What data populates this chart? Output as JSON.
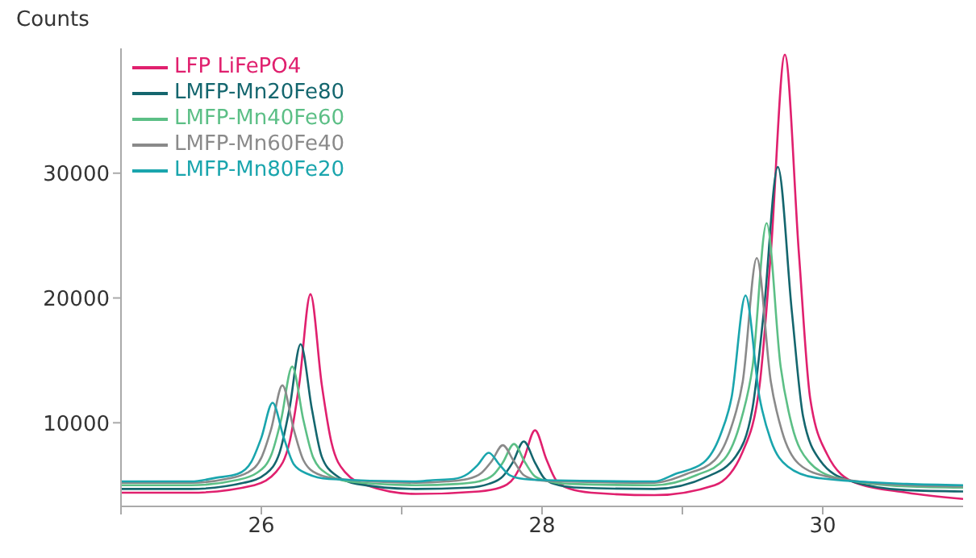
{
  "chart_data": {
    "type": "line",
    "ylabel": "Counts",
    "xlim": [
      25,
      31
    ],
    "ylim": [
      3300,
      40000
    ],
    "xticks": [
      {
        "value": 25,
        "label": null
      },
      26,
      {
        "value": 27,
        "label": null
      },
      28,
      {
        "value": 29,
        "label": null
      },
      30
    ],
    "yticks": [
      10000,
      20000,
      30000
    ],
    "grid": false,
    "legend": "top left",
    "marker": "none",
    "line_style": "solid",
    "series": [
      {
        "name": "LFP LiFePO4",
        "color": "#e0206e",
        "x": [
          25,
          25.5,
          25.95,
          26.1,
          26.2,
          26.27,
          26.35,
          26.43,
          26.5,
          26.6,
          26.75,
          27.1,
          27.55,
          27.7,
          27.8,
          27.87,
          27.95,
          28.03,
          28.1,
          28.2,
          28.35,
          28.8,
          29.23,
          29.43,
          29.55,
          29.63,
          29.73,
          29.83,
          29.91,
          30.03,
          30.23,
          30.6,
          31
        ],
        "values": [
          4400,
          4400,
          5000,
          6000,
          8400,
          13100,
          20300,
          13100,
          8400,
          6000,
          5000,
          4300,
          4500,
          4800,
          5600,
          7100,
          9400,
          7100,
          5400,
          4700,
          4400,
          4200,
          5000,
          7700,
          13000,
          23600,
          39500,
          23600,
          12000,
          7500,
          5200,
          4400,
          3900
        ]
      },
      {
        "name": "LMFP-Mn20Fe80",
        "color": "#14666e",
        "x": [
          25,
          25.5,
          25.88,
          26.03,
          26.13,
          26.2,
          26.28,
          26.36,
          26.43,
          26.53,
          26.68,
          27.1,
          27.47,
          27.62,
          27.72,
          27.79,
          27.87,
          27.95,
          28.02,
          28.12,
          28.27,
          28.8,
          29.18,
          29.38,
          29.5,
          29.58,
          29.68,
          29.78,
          29.86,
          29.98,
          30.18,
          30.6,
          31
        ],
        "values": [
          4700,
          4700,
          5200,
          5900,
          7600,
          11100,
          16300,
          11100,
          7300,
          5800,
          5100,
          4700,
          4800,
          5100,
          5700,
          6800,
          8500,
          6800,
          5500,
          5000,
          4800,
          4700,
          5700,
          7300,
          11200,
          18900,
          30500,
          18900,
          10500,
          7000,
          5400,
          4600,
          4500
        ]
      },
      {
        "name": "LMFP-Mn40Fe60",
        "color": "#5cbf86",
        "x": [
          25,
          25.5,
          25.82,
          25.97,
          26.07,
          26.14,
          26.22,
          26.3,
          26.37,
          26.47,
          26.62,
          27.1,
          27.4,
          27.55,
          27.65,
          27.72,
          27.8,
          27.88,
          27.95,
          28.05,
          28.2,
          28.8,
          29.1,
          29.3,
          29.42,
          29.5,
          29.6,
          29.7,
          29.78,
          29.9,
          30.1,
          30.6,
          31
        ],
        "values": [
          5000,
          5000,
          5400,
          6000,
          7400,
          10200,
          14500,
          10200,
          7200,
          5900,
          5300,
          5000,
          5100,
          5300,
          5800,
          6800,
          8300,
          6800,
          5700,
          5300,
          5100,
          5000,
          5800,
          7100,
          10300,
          14500,
          26000,
          14500,
          9800,
          6900,
          5600,
          4900,
          4800
        ]
      },
      {
        "name": "LMFP-Mn60Fe40",
        "color": "#8a8a8a",
        "x": [
          25,
          25.5,
          25.75,
          25.9,
          26,
          26.07,
          26.15,
          26.23,
          26.3,
          26.4,
          26.55,
          27.1,
          27.32,
          27.47,
          27.57,
          27.64,
          27.72,
          27.8,
          27.87,
          27.97,
          28.12,
          28.8,
          29.03,
          29.23,
          29.35,
          29.43,
          29.53,
          29.63,
          29.71,
          29.83,
          30.03,
          30.6,
          31
        ],
        "values": [
          5200,
          5200,
          5500,
          6000,
          7200,
          9500,
          13000,
          9500,
          7000,
          5900,
          5500,
          5200,
          5300,
          5500,
          6000,
          6900,
          8200,
          6900,
          5800,
          5400,
          5300,
          5200,
          5900,
          7000,
          9700,
          13300,
          23200,
          13300,
          9300,
          6700,
          5700,
          5000,
          4900
        ]
      },
      {
        "name": "LMFP-Mn80Fe20",
        "color": "#1aa5ad",
        "x": [
          25,
          25.5,
          25.68,
          25.83,
          25.93,
          26,
          26.08,
          26.16,
          26.23,
          26.33,
          26.48,
          27.1,
          27.22,
          27.37,
          27.47,
          27.54,
          27.62,
          27.7,
          27.77,
          27.87,
          28.02,
          28.8,
          28.95,
          29.15,
          29.27,
          29.35,
          29.45,
          29.55,
          29.63,
          29.75,
          29.95,
          30.6,
          31
        ],
        "values": [
          5300,
          5300,
          5600,
          5900,
          6900,
          8800,
          11600,
          8800,
          6700,
          5900,
          5500,
          5300,
          5400,
          5500,
          5900,
          6600,
          7600,
          6600,
          5800,
          5500,
          5400,
          5300,
          5900,
          6800,
          9000,
          12000,
          20200,
          12000,
          8600,
          6500,
          5600,
          5100,
          5000
        ]
      }
    ]
  }
}
